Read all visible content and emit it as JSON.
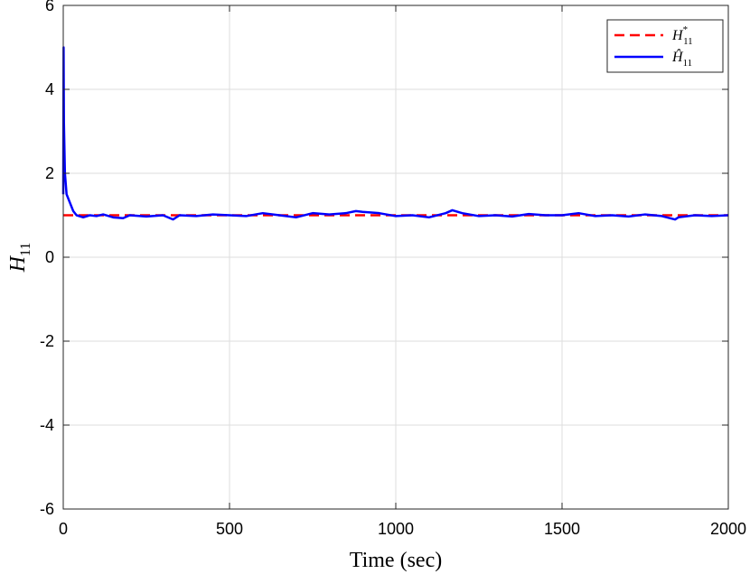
{
  "chart_data": {
    "type": "line",
    "xlabel": "Time (sec)",
    "ylabel": "H",
    "ylabel_subscript": "11",
    "xlim": [
      0,
      2000
    ],
    "ylim": [
      -6,
      6
    ],
    "x_ticks": [
      0,
      500,
      1000,
      1500,
      2000
    ],
    "y_ticks": [
      6,
      4,
      2,
      0,
      -2,
      -4,
      -6
    ],
    "x_tick_labels": [
      "0",
      "500",
      "1000",
      "1500",
      "2000"
    ],
    "y_tick_labels": [
      "6",
      "4",
      "2",
      "0",
      "-2",
      "-4",
      "-6"
    ],
    "grid": true,
    "legend_position": "top-right",
    "series": [
      {
        "name": "H*11",
        "legend_main": "H",
        "legend_sup": "*",
        "legend_sub": "11",
        "color": "#ff0000",
        "style": "dashed",
        "x": [
          0,
          2000
        ],
        "y": [
          1,
          1
        ]
      },
      {
        "name": "Ĥ11",
        "legend_main": "Ĥ",
        "legend_sub": "11",
        "color": "#0000ff",
        "style": "solid",
        "x": [
          0,
          1,
          2,
          5,
          10,
          20,
          30,
          40,
          60,
          80,
          100,
          120,
          150,
          180,
          200,
          250,
          300,
          330,
          350,
          400,
          450,
          500,
          550,
          600,
          650,
          700,
          750,
          800,
          850,
          880,
          900,
          950,
          1000,
          1050,
          1100,
          1150,
          1170,
          1200,
          1250,
          1300,
          1350,
          1400,
          1450,
          1500,
          1550,
          1600,
          1650,
          1700,
          1750,
          1800,
          1840,
          1850,
          1900,
          1950,
          2000
        ],
        "y": [
          1.5,
          5.0,
          3.2,
          2.0,
          1.5,
          1.3,
          1.1,
          1.0,
          0.95,
          1.0,
          0.98,
          1.02,
          0.95,
          0.93,
          1.0,
          0.97,
          1.0,
          0.9,
          1.0,
          0.98,
          1.02,
          1.0,
          0.98,
          1.05,
          1.0,
          0.95,
          1.05,
          1.02,
          1.05,
          1.1,
          1.08,
          1.05,
          0.98,
          1.0,
          0.95,
          1.05,
          1.12,
          1.05,
          0.98,
          1.0,
          0.97,
          1.03,
          1.0,
          1.0,
          1.05,
          0.98,
          1.0,
          0.97,
          1.02,
          0.98,
          0.9,
          0.95,
          1.0,
          0.98,
          1.0
        ]
      }
    ]
  }
}
